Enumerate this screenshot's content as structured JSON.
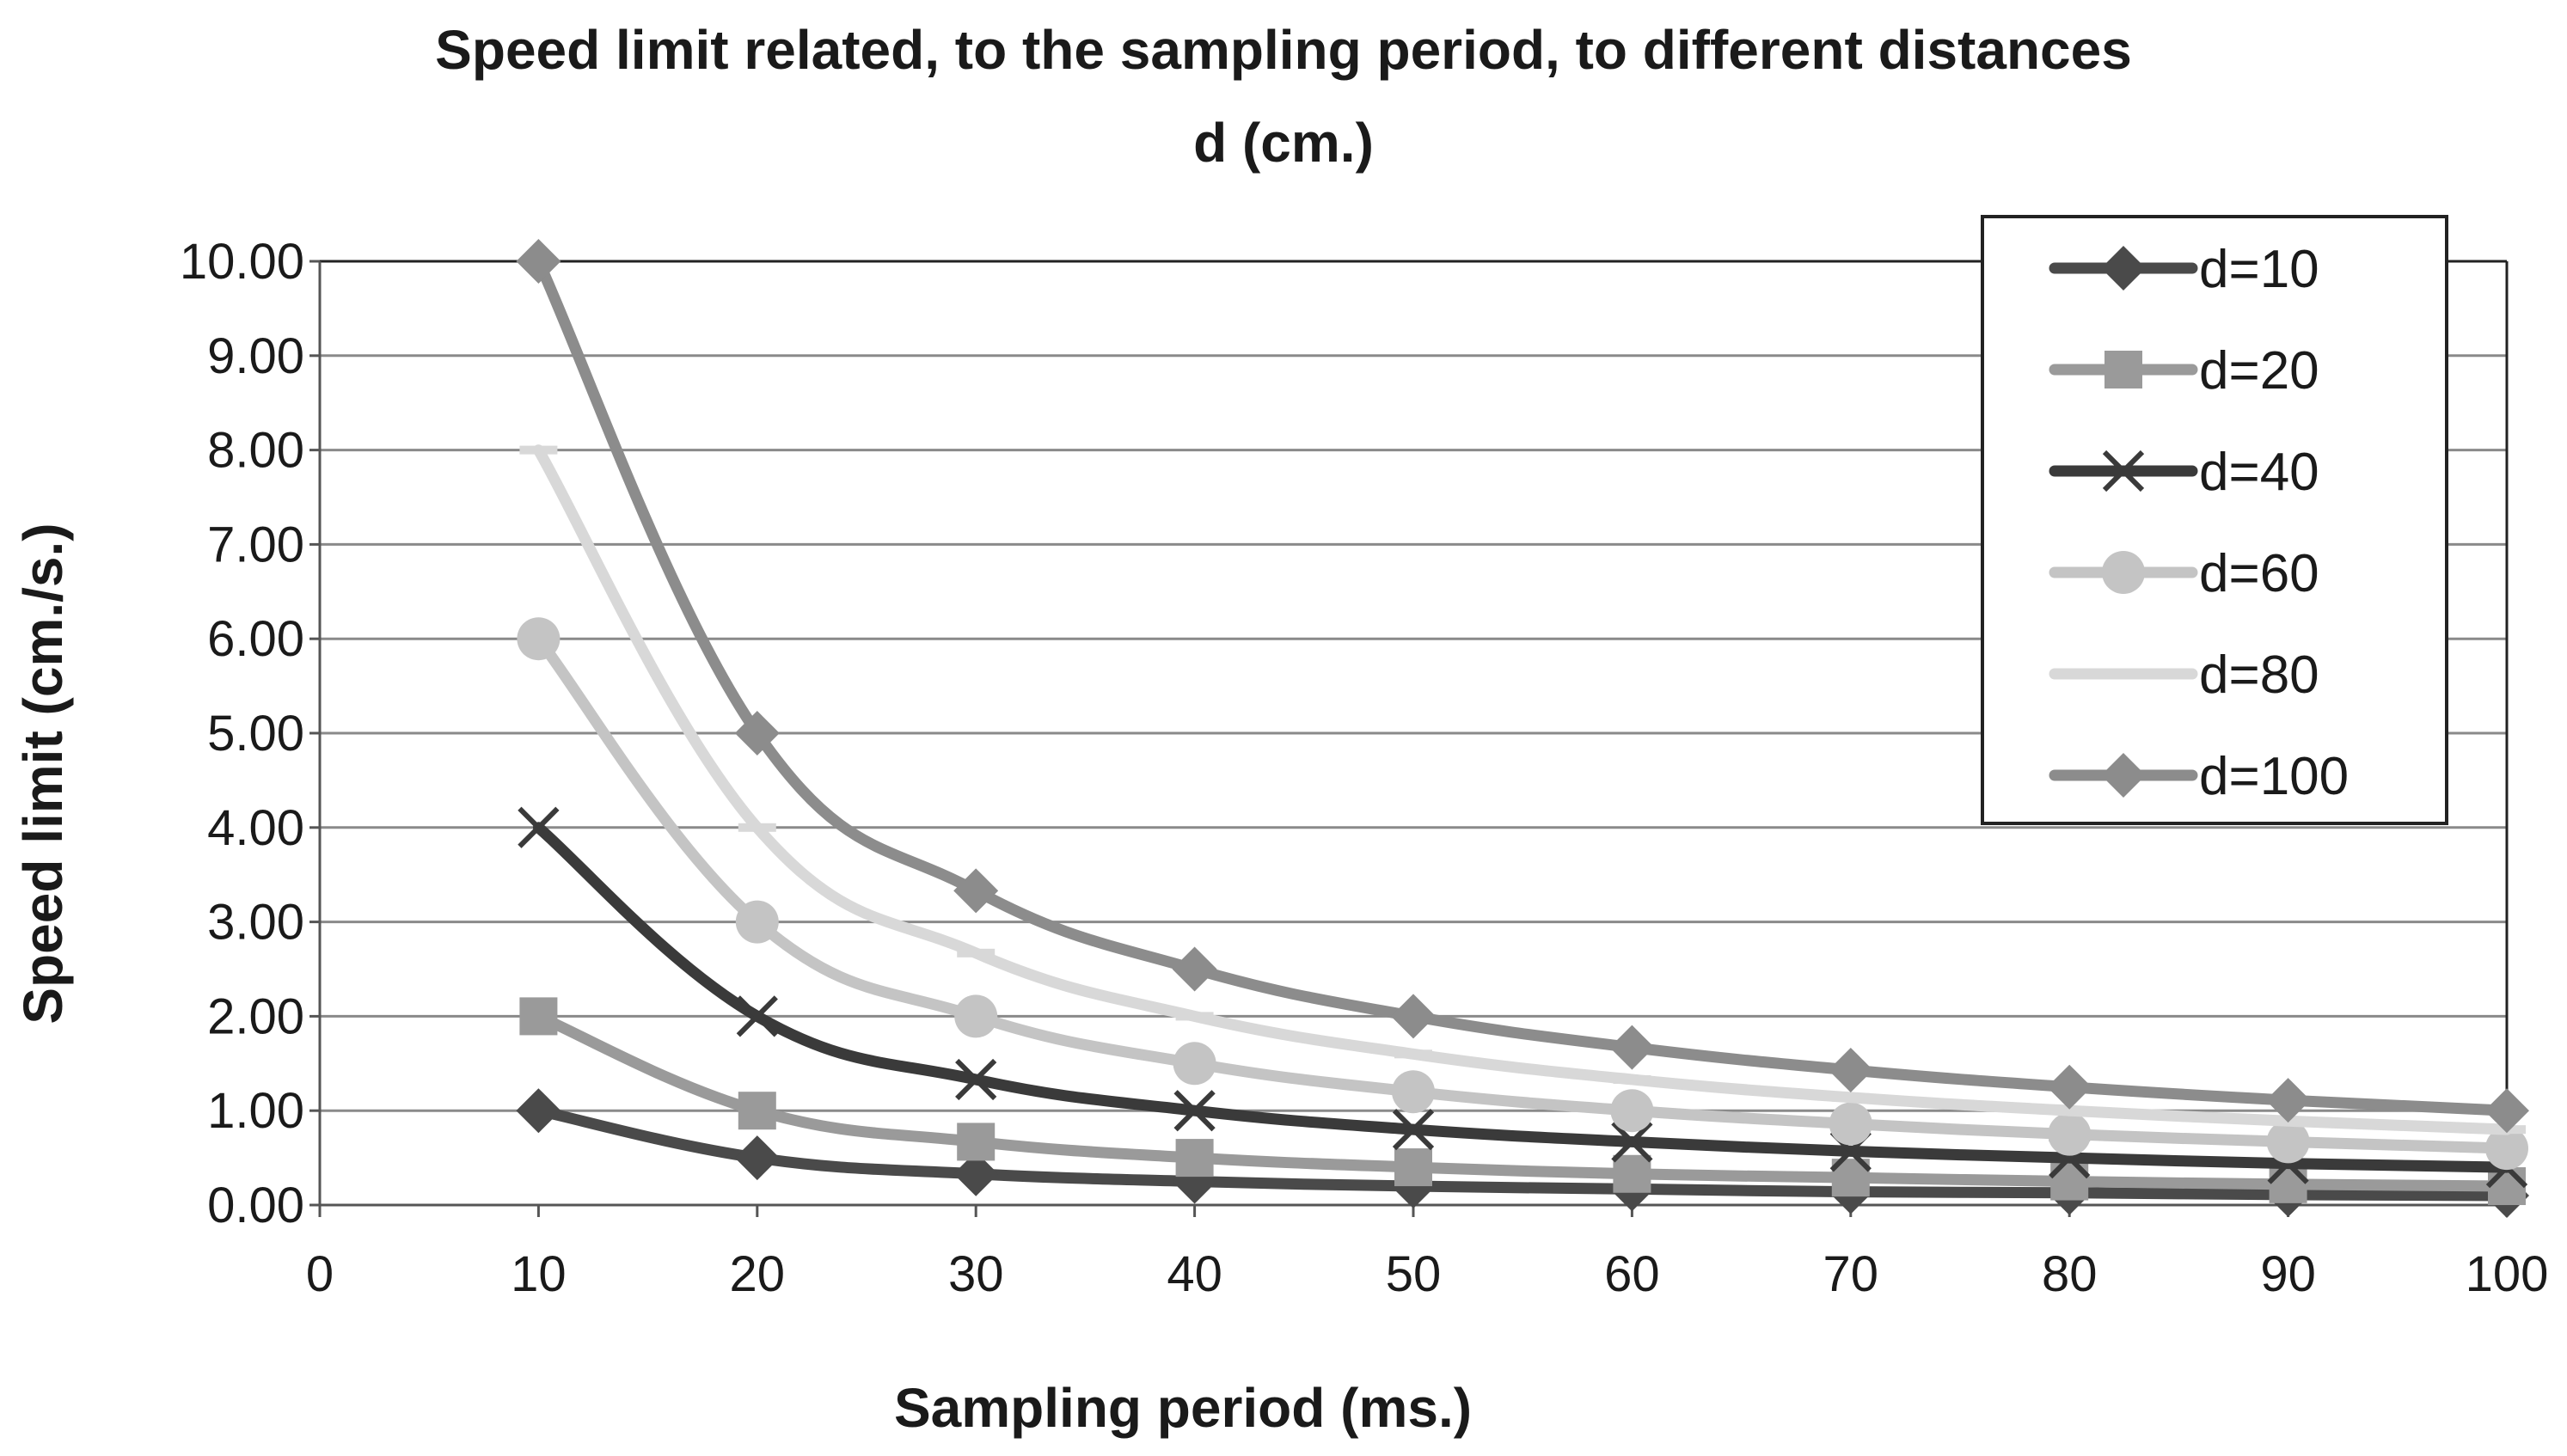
{
  "chart_data": {
    "type": "line",
    "title_lines": [
      "Speed limit related, to the sampling period, to different distances",
      "d (cm.)"
    ],
    "xlabel": "Sampling period (ms.)",
    "ylabel": "Speed limit (cm./s.)",
    "xlim": [
      0,
      100
    ],
    "ylim": [
      0,
      10
    ],
    "x_ticks": [
      "0",
      "10",
      "20",
      "30",
      "40",
      "50",
      "60",
      "70",
      "80",
      "90",
      "100"
    ],
    "y_ticks": [
      "0.00",
      "1.00",
      "2.00",
      "3.00",
      "4.00",
      "5.00",
      "6.00",
      "7.00",
      "8.00",
      "9.00",
      "10.00"
    ],
    "grid": true,
    "legend_position": "top-right",
    "x": [
      10,
      20,
      30,
      40,
      50,
      60,
      70,
      80,
      90,
      100
    ],
    "series": [
      {
        "name": "d=10",
        "marker": "diamond",
        "color": "#4a4a4a",
        "values": [
          1.0,
          0.5,
          0.33,
          0.25,
          0.2,
          0.17,
          0.14,
          0.13,
          0.11,
          0.1
        ]
      },
      {
        "name": "d=20",
        "marker": "square",
        "color": "#9a9a9a",
        "values": [
          2.0,
          1.0,
          0.67,
          0.5,
          0.4,
          0.33,
          0.29,
          0.25,
          0.22,
          0.2
        ]
      },
      {
        "name": "d=40",
        "marker": "x",
        "color": "#3a3a3a",
        "values": [
          4.0,
          2.0,
          1.33,
          1.0,
          0.8,
          0.67,
          0.57,
          0.5,
          0.44,
          0.4
        ]
      },
      {
        "name": "d=60",
        "marker": "circle",
        "color": "#c4c4c4",
        "values": [
          6.0,
          3.0,
          2.0,
          1.5,
          1.2,
          1.0,
          0.86,
          0.75,
          0.67,
          0.6
        ]
      },
      {
        "name": "d=80",
        "marker": "dash",
        "color": "#d8d8d8",
        "values": [
          8.0,
          4.0,
          2.67,
          2.0,
          1.6,
          1.33,
          1.14,
          1.0,
          0.89,
          0.8
        ]
      },
      {
        "name": "d=100",
        "marker": "diamond",
        "color": "#8c8c8c",
        "values": [
          10.0,
          5.0,
          3.33,
          2.5,
          2.0,
          1.67,
          1.43,
          1.25,
          1.11,
          1.0
        ]
      }
    ]
  }
}
